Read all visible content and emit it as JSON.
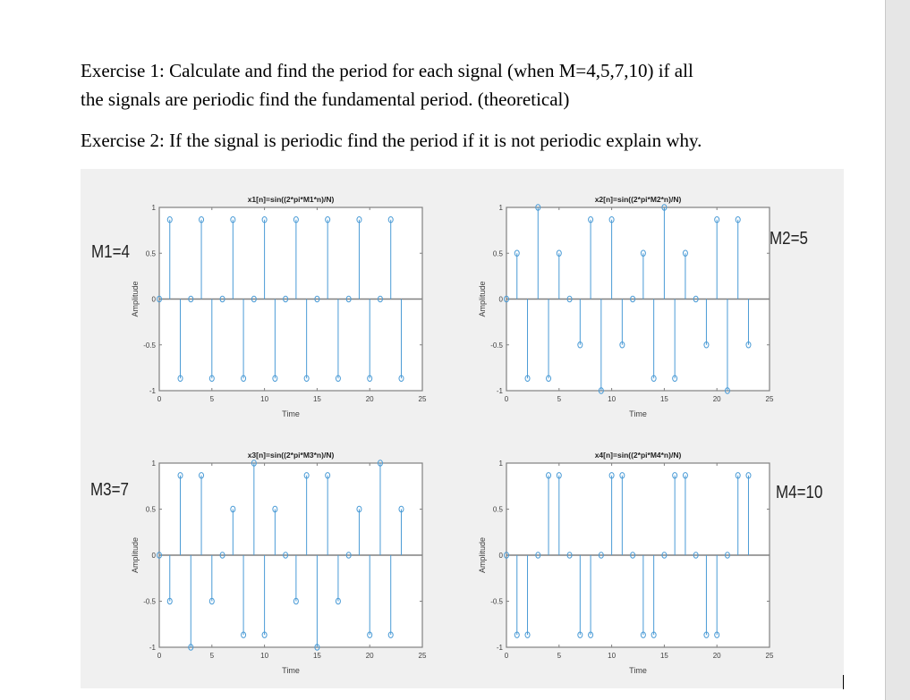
{
  "document": {
    "paragraphs": [
      {
        "line1": "Exercise 1: Calculate and find the period for each signal (when M=4,5,7,10) if all",
        "line2": "the signals are periodic find the fundamental period. (theoretical)"
      },
      {
        "line1": "Exercise 2: If the signal is periodic find the period if it is not periodic explain why."
      }
    ]
  },
  "colors": {
    "stem": "#4a9bd6",
    "figure_bg": "#f0f0f0",
    "axes_bg": "#ffffff",
    "axes_line": "#808080",
    "text": "#404040"
  },
  "annotations": [
    {
      "id": "m1",
      "text": "M1=4"
    },
    {
      "id": "m2",
      "text": "M2=5"
    },
    {
      "id": "m3",
      "text": "M3=7"
    },
    {
      "id": "m4",
      "text": "M4=10"
    }
  ],
  "chart_data": [
    {
      "type": "stem",
      "title": "x1[n]=sin((2*pi*M1*n)/N)",
      "xlabel": "Time",
      "ylabel": "Amplitude",
      "xlim": [
        0,
        25
      ],
      "ylim": [
        -1,
        1
      ],
      "xticks": [
        0,
        5,
        10,
        15,
        20,
        25
      ],
      "yticks": [
        -1,
        -0.5,
        0,
        0.5,
        1
      ],
      "x": [
        0,
        1,
        2,
        3,
        4,
        5,
        6,
        7,
        8,
        9,
        10,
        11,
        12,
        13,
        14,
        15,
        16,
        17,
        18,
        19,
        20,
        21,
        22,
        23
      ],
      "values": [
        0,
        0.866,
        -0.866,
        0,
        0.866,
        -0.866,
        0,
        0.866,
        -0.866,
        0,
        0.866,
        -0.866,
        0,
        0.866,
        -0.866,
        0,
        0.866,
        -0.866,
        0,
        0.866,
        -0.866,
        0,
        0.866,
        -0.866
      ]
    },
    {
      "type": "stem",
      "title": "x2[n]=sin((2*pi*M2*n)/N)",
      "xlabel": "Time",
      "ylabel": "Amplitude",
      "xlim": [
        0,
        25
      ],
      "ylim": [
        -1,
        1
      ],
      "xticks": [
        0,
        5,
        10,
        15,
        20,
        25
      ],
      "yticks": [
        -1,
        -0.5,
        0,
        0.5,
        1
      ],
      "x": [
        0,
        1,
        2,
        3,
        4,
        5,
        6,
        7,
        8,
        9,
        10,
        11,
        12,
        13,
        14,
        15,
        16,
        17,
        18,
        19,
        20,
        21,
        22,
        23
      ],
      "values": [
        0,
        0.5,
        -0.866,
        1,
        -0.866,
        0.5,
        0,
        -0.5,
        0.866,
        -1,
        0.866,
        -0.5,
        0,
        0.5,
        -0.866,
        1,
        -0.866,
        0.5,
        0,
        -0.5,
        0.866,
        -1,
        0.866,
        -0.5
      ]
    },
    {
      "type": "stem",
      "title": "x3[n]=sin((2*pi*M3*n)/N)",
      "xlabel": "Time",
      "ylabel": "Amplitude",
      "xlim": [
        0,
        25
      ],
      "ylim": [
        -1,
        1
      ],
      "xticks": [
        0,
        5,
        10,
        15,
        20,
        25
      ],
      "yticks": [
        -1,
        -0.5,
        0,
        0.5,
        1
      ],
      "x": [
        0,
        1,
        2,
        3,
        4,
        5,
        6,
        7,
        8,
        9,
        10,
        11,
        12,
        13,
        14,
        15,
        16,
        17,
        18,
        19,
        20,
        21,
        22,
        23
      ],
      "values": [
        0,
        -0.5,
        0.866,
        -1,
        0.866,
        -0.5,
        0,
        0.5,
        -0.866,
        1,
        -0.866,
        0.5,
        0,
        -0.5,
        0.866,
        -1,
        0.866,
        -0.5,
        0,
        0.5,
        -0.866,
        1,
        -0.866,
        0.5
      ]
    },
    {
      "type": "stem",
      "title": "x4[n]=sin((2*pi*M4*n)/N)",
      "xlabel": "Time",
      "ylabel": "Amplitude",
      "xlim": [
        0,
        25
      ],
      "ylim": [
        -1,
        1
      ],
      "xticks": [
        0,
        5,
        10,
        15,
        20,
        25
      ],
      "yticks": [
        -1,
        -0.5,
        0,
        0.5,
        1
      ],
      "x": [
        0,
        1,
        2,
        3,
        4,
        5,
        6,
        7,
        8,
        9,
        10,
        11,
        12,
        13,
        14,
        15,
        16,
        17,
        18,
        19,
        20,
        21,
        22,
        23
      ],
      "values": [
        0,
        -0.866,
        -0.866,
        0,
        0.866,
        0.866,
        0,
        -0.866,
        -0.866,
        0,
        0.866,
        0.866,
        0,
        -0.866,
        -0.866,
        0,
        0.866,
        0.866,
        0,
        -0.866,
        -0.866,
        0,
        0.866,
        0.866
      ]
    }
  ]
}
